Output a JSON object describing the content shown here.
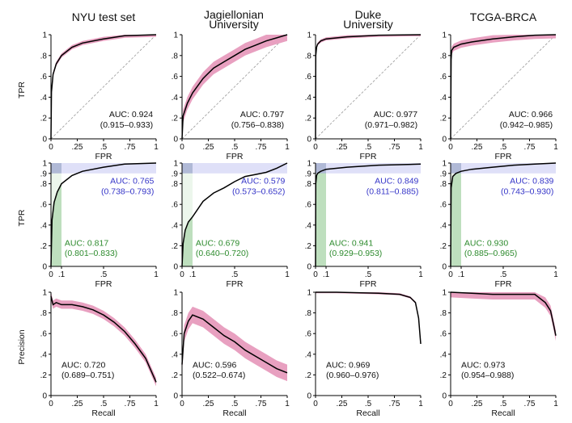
{
  "colors": {
    "curve": "#000000",
    "band": "#e8a0c0",
    "blue_text": "#3535c8",
    "blue_fill": "#c9cbf3",
    "green_text": "#2e8b2e",
    "green_fill": "#7fc07f",
    "diag": "#999999"
  },
  "chart_data": {
    "type": "line",
    "columns": [
      "NYU test set",
      "Jagiellonian\nUniversity",
      "Duke\nUniversity",
      "TCGA-BRCA"
    ],
    "rows": [
      {
        "kind": "roc",
        "xlabel": "FPR",
        "ylabel": "TPR",
        "xticks": [
          "0",
          ".25",
          ".5",
          ".75",
          "1"
        ],
        "yticks": [
          "0",
          ".2",
          ".4",
          ".6",
          ".8",
          "1"
        ]
      },
      {
        "kind": "partial_roc",
        "xlabel": "FPR",
        "ylabel": "TPR",
        "xticks": [
          "0",
          ".1",
          ".5",
          "1"
        ],
        "yticks": [
          "0",
          ".2",
          ".4",
          ".6",
          ".8",
          ".9",
          "1"
        ]
      },
      {
        "kind": "pr",
        "xlabel": "Recall",
        "ylabel": "Precision",
        "xticks": [
          "0",
          ".25",
          ".5",
          ".75",
          "1"
        ],
        "yticks": [
          "0",
          ".2",
          ".4",
          ".6",
          ".8",
          "1"
        ]
      }
    ],
    "roc": [
      {
        "auc": "AUC: 0.924",
        "ci": "(0.915–0.933)",
        "x": [
          0,
          0.005,
          0.02,
          0.05,
          0.1,
          0.2,
          0.3,
          0.5,
          0.7,
          1
        ],
        "y": [
          0,
          0.45,
          0.62,
          0.72,
          0.8,
          0.88,
          0.92,
          0.96,
          0.99,
          1
        ],
        "band": 0.02
      },
      {
        "auc": "AUC: 0.797",
        "ci": "(0.756–0.838)",
        "x": [
          0,
          0.01,
          0.05,
          0.1,
          0.2,
          0.3,
          0.4,
          0.5,
          0.6,
          0.7,
          0.8,
          0.9,
          1
        ],
        "y": [
          0,
          0.22,
          0.34,
          0.44,
          0.58,
          0.68,
          0.74,
          0.8,
          0.86,
          0.9,
          0.94,
          0.97,
          1
        ],
        "band": 0.06
      },
      {
        "auc": "AUC: 0.977",
        "ci": "(0.971–0.982)",
        "x": [
          0,
          0.002,
          0.01,
          0.02,
          0.05,
          0.1,
          0.3,
          0.6,
          1
        ],
        "y": [
          0,
          0.8,
          0.88,
          0.91,
          0.94,
          0.96,
          0.98,
          0.995,
          1
        ],
        "band": 0.015
      },
      {
        "auc": "AUC: 0.966",
        "ci": "(0.942–0.985)",
        "x": [
          0,
          0.005,
          0.01,
          0.03,
          0.1,
          0.2,
          0.4,
          0.6,
          0.8,
          1
        ],
        "y": [
          0,
          0.76,
          0.85,
          0.88,
          0.91,
          0.93,
          0.96,
          0.98,
          0.995,
          1
        ],
        "band": 0.035
      }
    ],
    "partial_roc": [
      {
        "blue_auc": "AUC: 0.765",
        "blue_ci": "(0.738–0.793)",
        "green_auc": "AUC: 0.817",
        "green_ci": "(0.801–0.833)",
        "x": [
          0,
          0.01,
          0.03,
          0.06,
          0.1,
          0.2,
          0.3,
          0.5,
          0.7,
          1
        ],
        "y": [
          0,
          0.45,
          0.62,
          0.72,
          0.8,
          0.88,
          0.92,
          0.96,
          0.99,
          1
        ]
      },
      {
        "blue_auc": "AUC: 0.579",
        "blue_ci": "(0.573–0.652)",
        "green_auc": "AUC: 0.679",
        "green_ci": "(0.640–0.720)",
        "x": [
          0,
          0.01,
          0.03,
          0.06,
          0.1,
          0.2,
          0.3,
          0.4,
          0.5,
          0.6,
          0.7,
          0.8,
          0.9,
          1
        ],
        "y": [
          0,
          0.22,
          0.35,
          0.43,
          0.48,
          0.63,
          0.71,
          0.76,
          0.82,
          0.87,
          0.89,
          0.91,
          0.95,
          1
        ]
      },
      {
        "blue_auc": "AUC: 0.849",
        "blue_ci": "(0.811–0.885)",
        "green_auc": "AUC: 0.941",
        "green_ci": "(0.929–0.953)",
        "x": [
          0,
          0.002,
          0.01,
          0.02,
          0.05,
          0.1,
          0.3,
          0.6,
          1
        ],
        "y": [
          0,
          0.8,
          0.88,
          0.9,
          0.92,
          0.94,
          0.96,
          0.98,
          0.99
        ]
      },
      {
        "blue_auc": "AUC: 0.839",
        "blue_ci": "(0.743–0.930)",
        "green_auc": "AUC: 0.930",
        "green_ci": "(0.885–0.965)",
        "x": [
          0,
          0.005,
          0.02,
          0.05,
          0.1,
          0.2,
          0.4,
          0.6,
          0.8,
          1
        ],
        "y": [
          0,
          0.76,
          0.87,
          0.9,
          0.92,
          0.94,
          0.96,
          0.98,
          0.99,
          1
        ]
      }
    ],
    "pr": [
      {
        "auc": "AUC: 0.720",
        "ci": "(0.689–0.751)",
        "x": [
          0,
          0.02,
          0.05,
          0.1,
          0.2,
          0.3,
          0.4,
          0.5,
          0.6,
          0.7,
          0.8,
          0.9,
          1
        ],
        "y": [
          0.96,
          0.88,
          0.9,
          0.88,
          0.88,
          0.86,
          0.83,
          0.78,
          0.71,
          0.62,
          0.5,
          0.36,
          0.13
        ],
        "band": 0.04
      },
      {
        "auc": "AUC: 0.596",
        "ci": "(0.522–0.674)",
        "x": [
          0,
          0.02,
          0.06,
          0.1,
          0.2,
          0.3,
          0.4,
          0.5,
          0.6,
          0.7,
          0.8,
          0.9,
          1
        ],
        "y": [
          0.3,
          0.6,
          0.72,
          0.78,
          0.74,
          0.66,
          0.58,
          0.52,
          0.44,
          0.38,
          0.32,
          0.26,
          0.22
        ],
        "band": 0.08
      },
      {
        "auc": "AUC: 0.969",
        "ci": "(0.960–0.976)",
        "x": [
          0,
          0.2,
          0.4,
          0.6,
          0.8,
          0.9,
          0.95,
          0.98,
          1
        ],
        "y": [
          1,
          1,
          0.995,
          0.99,
          0.98,
          0.95,
          0.9,
          0.75,
          0.5
        ],
        "band": 0.01
      },
      {
        "auc": "AUC: 0.973",
        "ci": "(0.954–0.988)",
        "x": [
          0,
          0.2,
          0.4,
          0.6,
          0.8,
          0.9,
          0.95,
          0.98,
          1
        ],
        "y": [
          1,
          0.99,
          0.98,
          0.98,
          0.98,
          0.9,
          0.82,
          0.68,
          0.58
        ],
        "band": 0.05
      }
    ]
  }
}
